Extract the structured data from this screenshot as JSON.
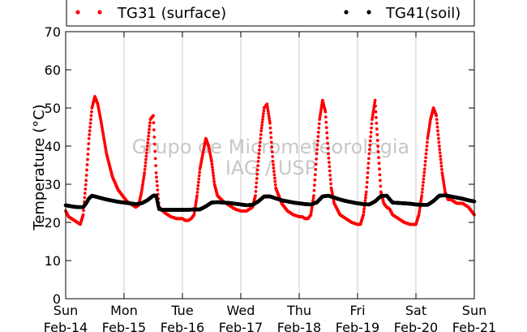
{
  "chart_data": {
    "type": "scatter",
    "ylabel": "Temperature (°C)",
    "ylim": [
      0,
      70
    ],
    "yticks": [
      0,
      10,
      20,
      30,
      40,
      50,
      60,
      70
    ],
    "xlim": [
      "2015-02-14 00:00",
      "2015-02-21 00:00"
    ],
    "xticks": [
      {
        "day": "Sun",
        "date": "Feb-14"
      },
      {
        "day": "Mon",
        "date": "Feb-15"
      },
      {
        "day": "Tue",
        "date": "Feb-16"
      },
      {
        "day": "Wed",
        "date": "Feb-17"
      },
      {
        "day": "Thu",
        "date": "Feb-18"
      },
      {
        "day": "Fri",
        "date": "Feb-19"
      },
      {
        "day": "Sat",
        "date": "Feb-20"
      },
      {
        "day": "Sun",
        "date": "Feb-21"
      }
    ],
    "grid": "vertical",
    "legend_placement": "top, outside plot",
    "watermark": [
      "Grupo de Micrometeorologia",
      "IAG / USP"
    ],
    "series": [
      {
        "name": "TG31 (surface)",
        "color": "#ff0000",
        "x_day": [
          0,
          0.05,
          0.1,
          0.15,
          0.2,
          0.25,
          0.3,
          0.35,
          0.4,
          0.45,
          0.5,
          0.55,
          0.6,
          0.7,
          0.8,
          0.9,
          1.0,
          1.05,
          1.1,
          1.15,
          1.2,
          1.25,
          1.3,
          1.35,
          1.4,
          1.45,
          1.5,
          1.55,
          1.6,
          1.7,
          1.8,
          1.9,
          2.0,
          2.05,
          2.1,
          2.15,
          2.2,
          2.25,
          2.3,
          2.35,
          2.4,
          2.45,
          2.5,
          2.55,
          2.6,
          2.7,
          2.8,
          2.9,
          3.0,
          3.05,
          3.1,
          3.15,
          3.2,
          3.25,
          3.3,
          3.35,
          3.4,
          3.45,
          3.5,
          3.55,
          3.6,
          3.7,
          3.8,
          3.9,
          4.0,
          4.05,
          4.1,
          4.15,
          4.2,
          4.25,
          4.3,
          4.35,
          4.4,
          4.45,
          4.5,
          4.55,
          4.6,
          4.7,
          4.8,
          4.9,
          5.0,
          5.05,
          5.1,
          5.15,
          5.2,
          5.25,
          5.3,
          5.35,
          5.4,
          5.45,
          5.5,
          5.55,
          5.6,
          5.7,
          5.8,
          5.9,
          6.0,
          6.05,
          6.1,
          6.15,
          6.2,
          6.25,
          6.3,
          6.35,
          6.4,
          6.45,
          6.5,
          6.55,
          6.6,
          6.7,
          6.8,
          6.9,
          7.0
        ],
        "values": [
          23,
          21.5,
          21,
          20.5,
          20,
          19.5,
          22,
          31,
          42,
          50,
          53,
          51,
          47,
          38,
          32,
          28.5,
          26.5,
          25.5,
          25,
          24.5,
          24,
          24.5,
          28,
          33,
          40,
          47,
          48,
          33,
          24,
          22.5,
          21.5,
          21,
          21,
          20.5,
          20.5,
          21,
          22,
          27,
          34,
          38,
          42,
          40,
          36,
          30,
          27,
          25.5,
          24.5,
          23.5,
          23,
          23,
          23,
          23.5,
          24,
          27,
          36,
          44,
          50,
          51,
          46,
          36,
          29,
          25,
          23,
          22,
          21.5,
          21.5,
          21,
          21,
          22,
          27,
          38,
          47,
          52,
          49,
          38,
          29,
          25,
          22,
          21,
          20,
          19.5,
          19.5,
          22,
          28,
          38,
          47,
          52,
          40,
          28,
          25,
          24,
          23.5,
          22,
          21,
          20,
          19.5,
          19.5,
          22,
          27,
          34,
          42,
          47,
          50,
          48,
          40,
          33,
          28,
          26,
          26,
          25,
          25,
          24,
          22
        ]
      },
      {
        "name": "TG41(soil)",
        "color": "#000000",
        "x_day": [
          0,
          0.1,
          0.2,
          0.3,
          0.35,
          0.4,
          0.45,
          0.5,
          0.6,
          0.7,
          0.8,
          0.9,
          1.0,
          1.1,
          1.2,
          1.3,
          1.4,
          1.5,
          1.55,
          1.6,
          1.65,
          1.7,
          1.8,
          1.9,
          2.0,
          2.1,
          2.2,
          2.3,
          2.4,
          2.5,
          2.6,
          2.7,
          2.8,
          2.9,
          3.0,
          3.1,
          3.2,
          3.3,
          3.4,
          3.5,
          3.6,
          3.7,
          3.8,
          3.9,
          4.0,
          4.1,
          4.2,
          4.3,
          4.4,
          4.5,
          4.6,
          4.7,
          4.8,
          4.9,
          5.0,
          5.1,
          5.2,
          5.3,
          5.4,
          5.5,
          5.6,
          5.7,
          5.8,
          5.9,
          6.0,
          6.1,
          6.2,
          6.3,
          6.4,
          6.5,
          6.6,
          6.7,
          6.8,
          6.9,
          7.0
        ],
        "values": [
          24.5,
          24.2,
          24,
          24,
          25,
          26.3,
          27,
          26.8,
          26.4,
          26,
          25.7,
          25.4,
          25.2,
          25,
          24.8,
          25,
          25.8,
          27,
          27,
          23.5,
          23.3,
          23.3,
          23.3,
          23.3,
          23.3,
          23.3,
          23.4,
          23.4,
          24.2,
          25.2,
          25.3,
          25.2,
          25.1,
          24.9,
          24.7,
          24.5,
          24.6,
          25.5,
          26.8,
          26.8,
          26.3,
          25.8,
          25.5,
          25.2,
          25,
          24.8,
          24.7,
          25.2,
          26.8,
          27,
          26.5,
          26,
          25.6,
          25.3,
          25,
          24.8,
          24.7,
          25.5,
          26.9,
          27,
          25.2,
          25.1,
          25,
          24.9,
          24.7,
          24.6,
          24.6,
          25.6,
          27,
          27.1,
          26.8,
          26.5,
          26.2,
          25.8,
          25.5
        ]
      }
    ]
  }
}
